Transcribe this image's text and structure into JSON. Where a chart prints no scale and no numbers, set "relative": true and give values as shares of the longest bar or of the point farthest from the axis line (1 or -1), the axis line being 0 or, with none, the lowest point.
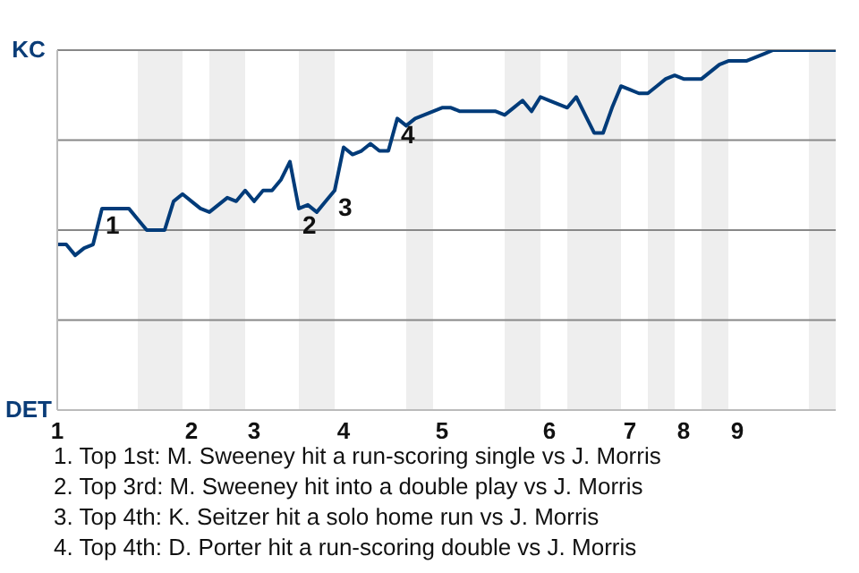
{
  "chart_data": {
    "type": "line",
    "relative": true,
    "categories": [
      "1",
      null,
      null,
      null,
      null,
      null,
      null,
      null,
      null,
      null,
      null,
      null,
      null,
      null,
      null,
      "2",
      null,
      null,
      null,
      null,
      null,
      null,
      "3",
      null,
      null,
      null,
      null,
      null,
      null,
      null,
      null,
      null,
      "4",
      null,
      null,
      null,
      null,
      null,
      null,
      null,
      null,
      null,
      null,
      "5",
      null,
      null,
      null,
      null,
      null,
      null,
      null,
      null,
      null,
      null,
      null,
      "6",
      null,
      null,
      null,
      null,
      null,
      null,
      null,
      null,
      "7",
      null,
      null,
      null,
      null,
      null,
      "8",
      null,
      null,
      null,
      null,
      null,
      "9",
      null,
      null,
      null,
      null,
      null,
      null,
      null,
      null,
      null,
      null,
      null
    ],
    "grid": "y",
    "legend": false,
    "marker": "none",
    "line_style": "solid",
    "series": [
      {
        "color": "#003b79",
        "values": [
          0.46,
          0.46,
          0.43,
          0.45,
          0.46,
          0.56,
          0.56,
          0.56,
          0.56,
          0.53,
          0.5,
          0.5,
          0.5,
          0.58,
          0.6,
          0.58,
          0.56,
          0.55,
          0.57,
          0.59,
          0.58,
          0.61,
          0.58,
          0.61,
          0.61,
          0.64,
          0.69,
          0.56,
          0.57,
          0.55,
          0.58,
          0.61,
          0.73,
          0.71,
          0.72,
          0.74,
          0.72,
          0.72,
          0.81,
          0.79,
          0.81,
          0.82,
          0.83,
          0.84,
          0.84,
          0.83,
          0.83,
          0.83,
          0.83,
          0.83,
          0.82,
          0.84,
          0.86,
          0.83,
          0.87,
          0.86,
          0.85,
          0.84,
          0.87,
          0.82,
          0.77,
          0.77,
          0.84,
          0.9,
          0.89,
          0.88,
          0.88,
          0.9,
          0.92,
          0.93,
          0.92,
          0.92,
          0.92,
          0.94,
          0.96,
          0.97,
          0.97,
          0.97,
          0.98,
          0.99,
          1,
          1,
          1,
          1,
          1,
          1,
          1,
          1
        ]
      }
    ],
    "annotations": [
      "KC",
      "DET",
      "1",
      "2",
      "3",
      "4",
      "1. Top 1st: M. Sweeney hit a run-scoring single vs J. Morris",
      "2. Top 3rd: M. Sweeney hit into a double play vs J. Morris",
      "3. Top 4th: K. Seitzer hit a solo home run vs J. Morris",
      "4. Top 4th: D. Porter hit a run-scoring double vs J. Morris"
    ]
  }
}
